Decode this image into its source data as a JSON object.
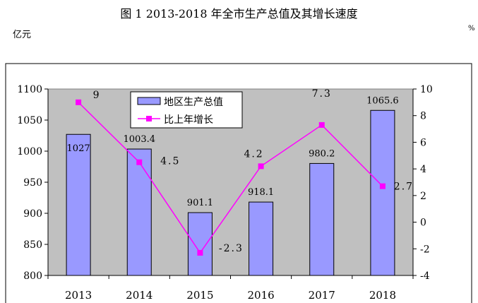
{
  "title": "图 1  2013-2018 年全市生产总值及其增长速度",
  "unit_left": "亿元",
  "unit_right": "%",
  "colors": {
    "bar_fill": "#9999ff",
    "bar_stroke": "#000000",
    "line": "#ff00ff",
    "plot_bg": "#c0c0c0"
  },
  "chart_data": {
    "type": "bar",
    "categories": [
      "2013",
      "2014",
      "2015",
      "2016",
      "2017",
      "2018"
    ],
    "ylim": [
      800,
      1100
    ],
    "yticks": [
      "800",
      "850",
      "900",
      "950",
      "1000",
      "1050",
      "1100"
    ],
    "y2lim": [
      -4,
      10
    ],
    "y2ticks": [
      "-4",
      "-2",
      "0",
      "2",
      "4",
      "6",
      "8",
      "10"
    ],
    "legend_position": "top-center",
    "grid": false,
    "series": [
      {
        "name": "地区生产总值",
        "type": "bar",
        "axis": "left",
        "values": [
          1027,
          1003.4,
          901.1,
          918.1,
          980.2,
          1065.6
        ],
        "labels": [
          "1027",
          "1003.4",
          "901.1",
          "918.1",
          "980.2",
          "1065.6"
        ]
      },
      {
        "name": "比上年增长",
        "type": "line",
        "axis": "right",
        "values": [
          9,
          4.5,
          -2.3,
          4.2,
          7.3,
          2.7
        ],
        "labels": [
          "9",
          "4.5",
          "-2.3",
          "4.2",
          "7.3",
          "2.7"
        ]
      }
    ]
  }
}
